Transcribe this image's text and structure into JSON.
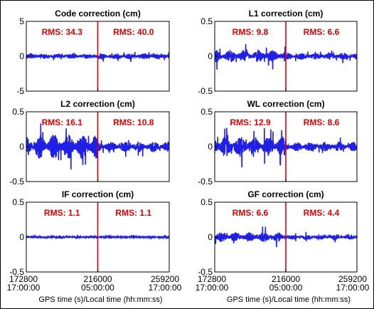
{
  "colors": {
    "series": "#1f1fe6",
    "marker": "#e00000",
    "rms_text": "#dd0000",
    "axis": "#000000"
  },
  "x_axis": {
    "range": [
      172800,
      259200
    ],
    "tick_gps": [
      "172800",
      "216000",
      "259200"
    ],
    "tick_local": [
      "17:00:00",
      "05:00:00",
      "17:00:00"
    ],
    "label": "GPS time (s)/Local time (hh:mm:ss)"
  },
  "chart_data": [
    {
      "type": "line",
      "title": "Code correction (cm)",
      "x": [
        172800,
        216000,
        259200
      ],
      "xlim": [
        172800,
        259200
      ],
      "ylim": [
        -5,
        5
      ],
      "yticks": [
        "5",
        "0",
        "-5"
      ],
      "marker_x": 216000,
      "rms_before": "RMS: 34.3",
      "rms_after": "RMS: 40.0",
      "noise": {
        "mean": 0,
        "amplitude": [
          0.35,
          0.4
        ]
      }
    },
    {
      "type": "line",
      "title": "L1 correction (cm)",
      "x": [
        172800,
        216000,
        259200
      ],
      "xlim": [
        172800,
        259200
      ],
      "ylim": [
        -0.5,
        0.5
      ],
      "yticks": [
        "0.5",
        "0",
        "-0.5"
      ],
      "marker_x": 216000,
      "rms_before": "RMS: 9.8",
      "rms_after": "RMS: 6.6",
      "noise": {
        "mean": 0,
        "amplitude": [
          0.09,
          0.05
        ]
      }
    },
    {
      "type": "line",
      "title": "L2 correction (cm)",
      "x": [
        172800,
        216000,
        259200
      ],
      "xlim": [
        172800,
        259200
      ],
      "ylim": [
        -0.5,
        0.5
      ],
      "yticks": [
        "0.5",
        "0",
        "-0.5"
      ],
      "marker_x": 216000,
      "rms_before": "RMS: 16.1",
      "rms_after": "RMS: 10.8",
      "noise": {
        "mean": 0,
        "amplitude": [
          0.18,
          0.08
        ]
      }
    },
    {
      "type": "line",
      "title": "WL correction (cm)",
      "x": [
        172800,
        216000,
        259200
      ],
      "xlim": [
        172800,
        259200
      ],
      "ylim": [
        -0.5,
        0.5
      ],
      "yticks": [
        "0.5",
        "0",
        "-0.5"
      ],
      "marker_x": 216000,
      "rms_before": "RMS: 12.9",
      "rms_after": "RMS: 8.6",
      "noise": {
        "mean": 0,
        "amplitude": [
          0.15,
          0.07
        ]
      }
    },
    {
      "type": "line",
      "title": "IF correction (cm)",
      "x": [
        172800,
        216000,
        259200
      ],
      "xlim": [
        172800,
        259200
      ],
      "ylim": [
        -0.5,
        0.5
      ],
      "yticks": [
        "0.5",
        "0",
        "-0.5"
      ],
      "marker_x": 216000,
      "rms_before": "RMS: 1.1",
      "rms_after": "RMS: 1.1",
      "noise": {
        "mean": 0,
        "amplitude": [
          0.015,
          0.015
        ]
      }
    },
    {
      "type": "line",
      "title": "GF correction (cm)",
      "x": [
        172800,
        216000,
        259200
      ],
      "xlim": [
        172800,
        259200
      ],
      "ylim": [
        -0.5,
        0.5
      ],
      "yticks": [
        "0.5",
        "0",
        "-0.5"
      ],
      "marker_x": 216000,
      "rms_before": "RMS: 6.6",
      "rms_after": "RMS: 4.4",
      "noise": {
        "mean": 0,
        "amplitude": [
          0.07,
          0.035
        ]
      }
    }
  ]
}
